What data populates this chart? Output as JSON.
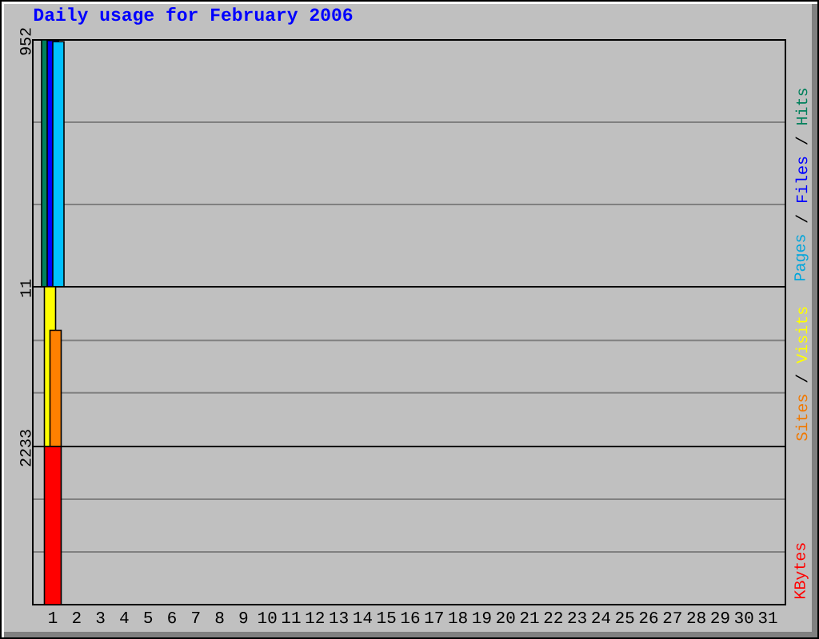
{
  "chart_data": [
    {
      "type": "bar",
      "title": "Daily usage for February 2006",
      "categories": [
        "1",
        "2",
        "3",
        "4",
        "5",
        "6",
        "7",
        "8",
        "9",
        "10",
        "11",
        "12",
        "13",
        "14",
        "15",
        "16",
        "17",
        "18",
        "19",
        "20",
        "21",
        "22",
        "23",
        "24",
        "25",
        "26",
        "27",
        "28",
        "29",
        "30",
        "31"
      ],
      "series": [
        {
          "name": "Hits",
          "color": "#00805c",
          "values": [
            952,
            null,
            null,
            null,
            null,
            null,
            null,
            null,
            null,
            null,
            null,
            null,
            null,
            null,
            null,
            null,
            null,
            null,
            null,
            null,
            null,
            null,
            null,
            null,
            null,
            null,
            null,
            null,
            null,
            null,
            null
          ]
        },
        {
          "name": "Files",
          "color": "#0000ff",
          "values": [
            950,
            null,
            null,
            null,
            null,
            null,
            null,
            null,
            null,
            null,
            null,
            null,
            null,
            null,
            null,
            null,
            null,
            null,
            null,
            null,
            null,
            null,
            null,
            null,
            null,
            null,
            null,
            null,
            null,
            null,
            null
          ]
        },
        {
          "name": "Pages",
          "color": "#00c0ff",
          "values": [
            945,
            null,
            null,
            null,
            null,
            null,
            null,
            null,
            null,
            null,
            null,
            null,
            null,
            null,
            null,
            null,
            null,
            null,
            null,
            null,
            null,
            null,
            null,
            null,
            null,
            null,
            null,
            null,
            null,
            null,
            null
          ]
        }
      ],
      "ylim": [
        0,
        952
      ],
      "yticks": [
        {
          "value": 317,
          "label": null
        },
        {
          "value": 635,
          "label": null
        },
        952
      ],
      "grid": "y",
      "legend": "right",
      "tick_labels": "y",
      "annotations": [
        "/",
        "/"
      ]
    },
    {
      "type": "bar",
      "categories": [
        "1",
        "2",
        "3",
        "4",
        "5",
        "6",
        "7",
        "8",
        "9",
        "10",
        "11",
        "12",
        "13",
        "14",
        "15",
        "16",
        "17",
        "18",
        "19",
        "20",
        "21",
        "22",
        "23",
        "24",
        "25",
        "26",
        "27",
        "28",
        "29",
        "30",
        "31"
      ],
      "series": [
        {
          "name": "Visits",
          "color": "#ffff00",
          "values": [
            11,
            null,
            null,
            null,
            null,
            null,
            null,
            null,
            null,
            null,
            null,
            null,
            null,
            null,
            null,
            null,
            null,
            null,
            null,
            null,
            null,
            null,
            null,
            null,
            null,
            null,
            null,
            null,
            null,
            null,
            null
          ]
        },
        {
          "name": "Sites",
          "color": "#ff8000",
          "values": [
            8,
            null,
            null,
            null,
            null,
            null,
            null,
            null,
            null,
            null,
            null,
            null,
            null,
            null,
            null,
            null,
            null,
            null,
            null,
            null,
            null,
            null,
            null,
            null,
            null,
            null,
            null,
            null,
            null,
            null,
            null
          ]
        }
      ],
      "ylim": [
        0,
        11
      ],
      "yticks": [
        {
          "value": 3.7,
          "label": null
        },
        {
          "value": 7.3,
          "label": null
        },
        11
      ],
      "grid": "y",
      "legend": "right",
      "tick_labels": "y",
      "annotations": [
        "/"
      ]
    },
    {
      "type": "bar",
      "categories": [
        "1",
        "2",
        "3",
        "4",
        "5",
        "6",
        "7",
        "8",
        "9",
        "10",
        "11",
        "12",
        "13",
        "14",
        "15",
        "16",
        "17",
        "18",
        "19",
        "20",
        "21",
        "22",
        "23",
        "24",
        "25",
        "26",
        "27",
        "28",
        "29",
        "30",
        "31"
      ],
      "series": [
        {
          "name": "KBytes",
          "color": "#ff0000",
          "values": [
            2233,
            null,
            null,
            null,
            null,
            null,
            null,
            null,
            null,
            null,
            null,
            null,
            null,
            null,
            null,
            null,
            null,
            null,
            null,
            null,
            null,
            null,
            null,
            null,
            null,
            null,
            null,
            null,
            null,
            null,
            null
          ]
        }
      ],
      "ylim": [
        0,
        2233
      ],
      "yticks": [
        {
          "value": 744,
          "label": null
        },
        {
          "value": 1489,
          "label": null
        },
        2233
      ],
      "grid": "y",
      "legend": "right"
    }
  ]
}
